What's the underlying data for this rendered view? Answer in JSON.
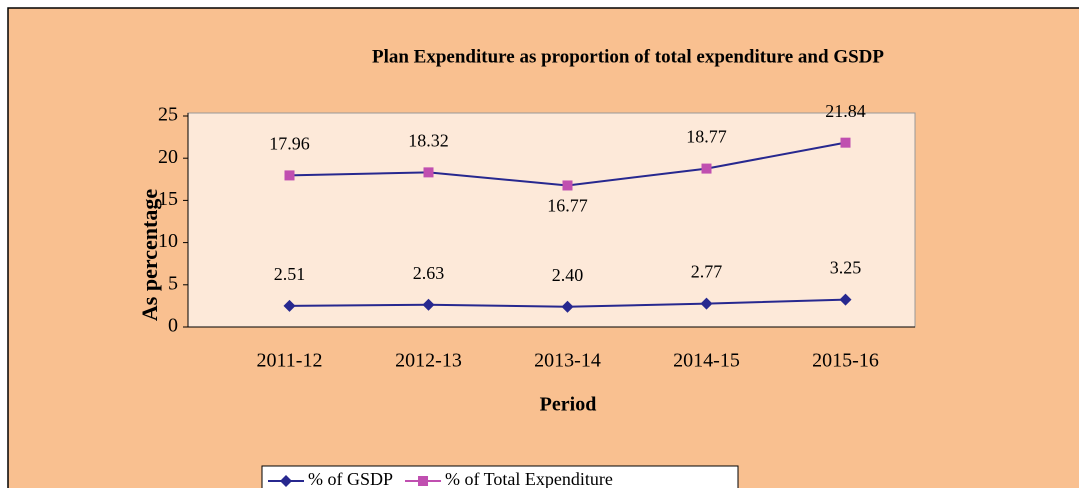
{
  "chart_data": {
    "type": "line",
    "title": "Plan Expenditure as proportion of total expenditure and GSDP",
    "x_label": "Period",
    "y_label": "As percentage",
    "categories": [
      "2011-12",
      "2012-13",
      "2013-14",
      "2014-15",
      "2015-16"
    ],
    "series": [
      {
        "name": "% of GSDP",
        "color": "#27288f",
        "marker": "diamond",
        "values": [
          2.51,
          2.63,
          2.4,
          2.77,
          3.25
        ],
        "value_labels": [
          "2.51",
          "2.63",
          "2.40",
          "2.77",
          "3.25"
        ]
      },
      {
        "name": "% of Total Expenditure",
        "color": "#c04fb0",
        "marker": "square",
        "values": [
          17.96,
          18.32,
          16.77,
          18.77,
          21.84
        ]
      }
    ],
    "ylim": [
      0,
      25
    ],
    "yticks": [
      0,
      5,
      10,
      15,
      20,
      25
    ],
    "grid": false,
    "legend": "bottom"
  }
}
